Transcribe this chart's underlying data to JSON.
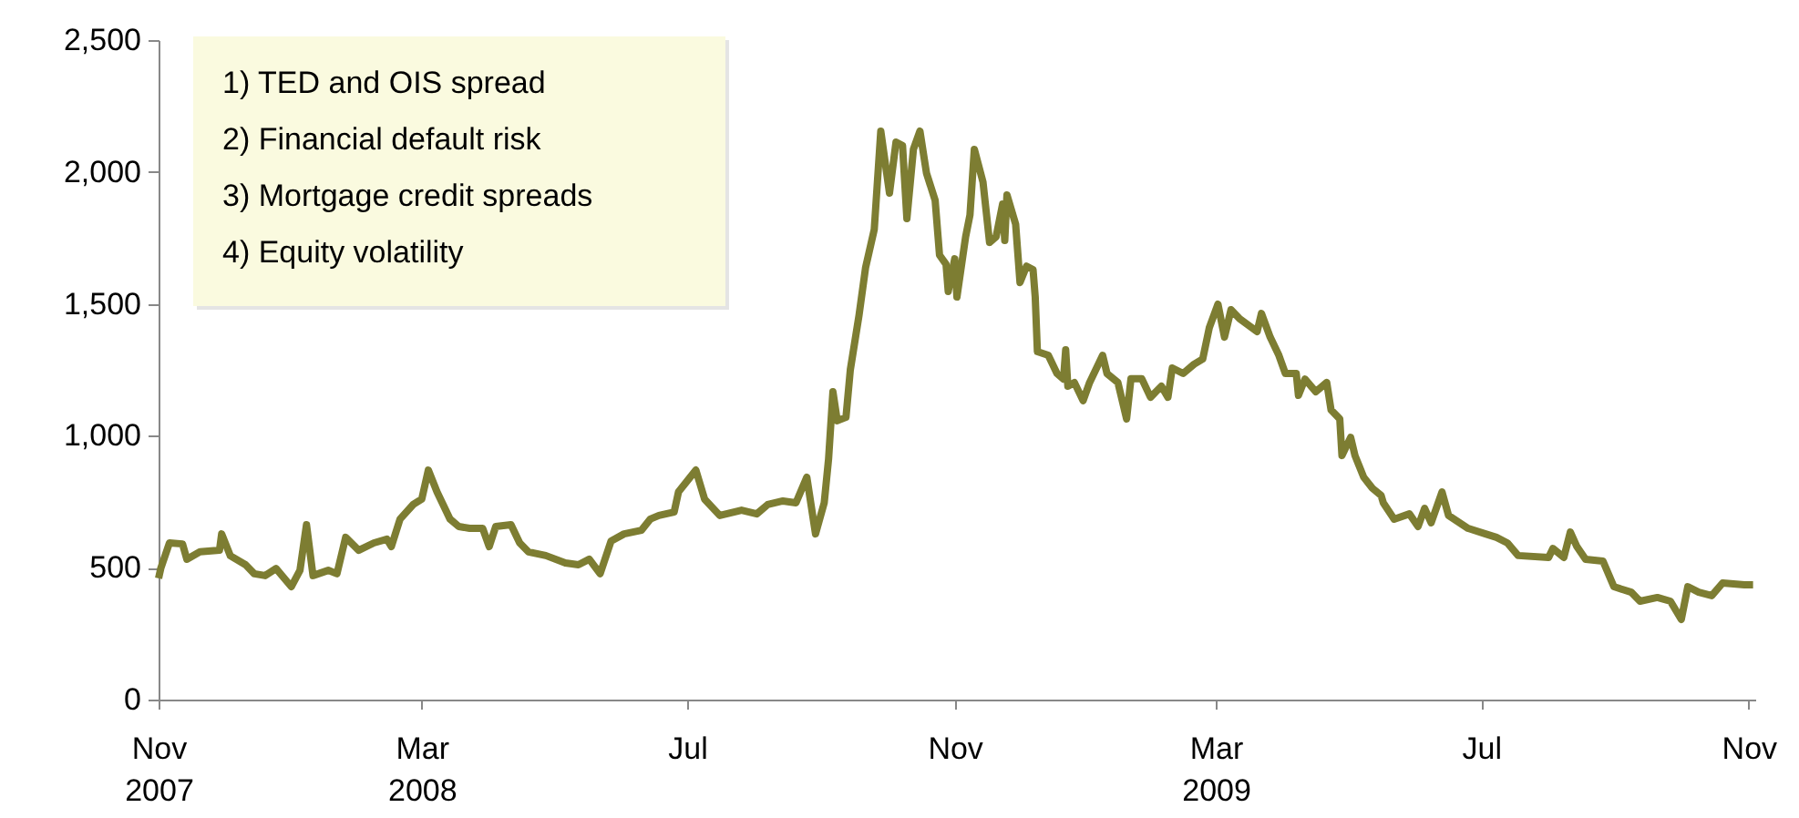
{
  "chart_data": {
    "type": "line",
    "x": [
      "2007-11-01",
      "2007-11-02",
      "2007-11-06",
      "2007-11-12",
      "2007-11-14",
      "2007-11-20",
      "2007-11-29",
      "2007-11-30",
      "2007-12-04",
      "2007-12-11",
      "2007-12-15",
      "2007-12-20",
      "2007-12-25",
      "2008-01-01",
      "2008-01-05",
      "2008-01-08",
      "2008-01-11",
      "2008-01-18",
      "2008-01-22",
      "2008-01-26",
      "2008-02-01",
      "2008-02-08",
      "2008-02-14",
      "2008-02-16",
      "2008-02-20",
      "2008-02-26",
      "2008-03-01",
      "2008-03-04",
      "2008-03-08",
      "2008-03-14",
      "2008-03-18",
      "2008-03-23",
      "2008-03-29",
      "2008-04-01",
      "2008-04-04",
      "2008-04-11",
      "2008-04-15",
      "2008-04-19",
      "2008-04-27",
      "2008-05-06",
      "2008-05-12",
      "2008-05-17",
      "2008-05-22",
      "2008-05-27",
      "2008-06-02",
      "2008-06-10",
      "2008-06-14",
      "2008-06-18",
      "2008-06-25",
      "2008-06-27",
      "2008-07-05",
      "2008-07-09",
      "2008-07-16",
      "2008-07-26",
      "2008-08-02",
      "2008-08-07",
      "2008-08-14",
      "2008-08-20",
      "2008-08-25",
      "2008-08-29",
      "2008-09-02",
      "2008-09-04",
      "2008-09-06",
      "2008-09-08",
      "2008-09-12",
      "2008-09-14",
      "2008-09-18",
      "2008-09-21",
      "2008-09-25",
      "2008-09-28",
      "2008-10-02",
      "2008-10-05",
      "2008-10-08",
      "2008-10-10",
      "2008-10-13",
      "2008-10-16",
      "2008-10-19",
      "2008-10-23",
      "2008-10-25",
      "2008-10-28",
      "2008-10-29",
      "2008-11-01",
      "2008-11-02",
      "2008-11-06",
      "2008-11-08",
      "2008-11-10",
      "2008-11-14",
      "2008-11-17",
      "2008-11-20",
      "2008-11-23",
      "2008-11-24",
      "2008-11-25",
      "2008-11-29",
      "2008-12-01",
      "2008-12-04",
      "2008-12-07",
      "2008-12-08",
      "2008-12-09",
      "2008-12-14",
      "2008-12-18",
      "2008-12-21",
      "2008-12-22",
      "2008-12-23",
      "2008-12-26",
      "2008-12-30",
      "2009-01-02",
      "2009-01-08",
      "2009-01-10",
      "2009-01-15",
      "2009-01-19",
      "2009-01-21",
      "2009-01-26",
      "2009-01-30",
      "2009-02-04",
      "2009-02-07",
      "2009-02-09",
      "2009-02-14",
      "2009-02-19",
      "2009-02-23",
      "2009-02-26",
      "2009-03-02",
      "2009-03-05",
      "2009-03-08",
      "2009-03-12",
      "2009-03-20",
      "2009-03-22",
      "2009-03-26",
      "2009-03-30",
      "2009-04-02",
      "2009-04-07",
      "2009-04-08",
      "2009-04-11",
      "2009-04-16",
      "2009-04-21",
      "2009-04-23",
      "2009-04-27",
      "2009-04-28",
      "2009-05-02",
      "2009-05-04",
      "2009-05-08",
      "2009-05-12",
      "2009-05-16",
      "2009-05-17",
      "2009-05-22",
      "2009-05-29",
      "2009-06-02",
      "2009-06-05",
      "2009-06-08",
      "2009-06-13",
      "2009-06-16",
      "2009-06-25",
      "2009-07-03",
      "2009-07-08",
      "2009-07-13",
      "2009-07-18",
      "2009-08-01",
      "2009-08-03",
      "2009-08-08",
      "2009-08-11",
      "2009-08-14",
      "2009-08-18",
      "2009-08-26",
      "2009-08-31",
      "2009-09-08",
      "2009-09-12",
      "2009-09-20",
      "2009-09-26",
      "2009-10-01",
      "2009-10-04",
      "2009-10-09",
      "2009-10-15",
      "2009-10-20",
      "2009-10-30",
      "2009-11-03"
    ],
    "series": [
      {
        "color": "#7d7d32",
        "values": [
          460,
          497,
          594,
          590,
          532,
          560,
          566,
          628,
          545,
          511,
          477,
          470,
          497,
          428,
          490,
          663,
          470,
          490,
          477,
          615,
          566,
          594,
          608,
          580,
          684,
          739,
          760,
          870,
          787,
          684,
          656,
          649,
          649,
          580,
          656,
          663,
          594,
          560,
          546,
          518,
          511,
          532,
          477,
          601,
          628,
          642,
          684,
          698,
          711,
          787,
          870,
          760,
          698,
          718,
          704,
          739,
          753,
          746,
          843,
          628,
          746,
          912,
          1167,
          1057,
          1070,
          1250,
          1457,
          1637,
          1782,
          2155,
          1920,
          2113,
          2100,
          1823,
          2086,
          2155,
          1996,
          1892,
          1685,
          1650,
          1547,
          1671,
          1526,
          1754,
          1837,
          2086,
          1961,
          1733,
          1754,
          1878,
          1740,
          1913,
          1802,
          1581,
          1643,
          1630,
          1526,
          1319,
          1305,
          1236,
          1215,
          1326,
          1188,
          1202,
          1133,
          1202,
          1305,
          1236,
          1202,
          1064,
          1216,
          1216,
          1146,
          1188,
          1146,
          1257,
          1236,
          1271,
          1291,
          1409,
          1499,
          1374,
          1478,
          1443,
          1395,
          1464,
          1374,
          1305,
          1236,
          1236,
          1153,
          1215,
          1167,
          1202,
          1098,
          1064,
          925,
          994,
          925,
          843,
          801,
          774,
          746,
          684,
          704,
          656,
          725,
          670,
          787,
          698,
          649,
          628,
          615,
          594,
          546,
          539,
          573,
          539,
          635,
          580,
          532,
          525,
          428,
          407,
          373,
          387,
          373,
          304,
          428,
          407,
          394,
          442,
          435,
          435
        ]
      }
    ],
    "xlim": [
      "2007-11-01",
      "2009-11-04"
    ],
    "xticks": [
      {
        "value": "2007-11-01",
        "label": "Nov 2007"
      },
      {
        "value": "2008-03-01",
        "label": "Mar 2008"
      },
      {
        "value": "2008-07-01",
        "label": "Jul"
      },
      {
        "value": "2008-11-01",
        "label": "Nov"
      },
      {
        "value": "2009-03-01",
        "label": "Mar 2009"
      },
      {
        "value": "2009-07-01",
        "label": "Jul"
      },
      {
        "value": "2009-11-01",
        "label": "Nov"
      }
    ],
    "ylim": [
      0,
      2500
    ],
    "yticks": [
      {
        "value": 0,
        "label": "0"
      },
      {
        "value": 500,
        "label": "500"
      },
      {
        "value": 1000,
        "label": "1,000"
      },
      {
        "value": 1500,
        "label": "1,500"
      },
      {
        "value": 2000,
        "label": "2,000"
      },
      {
        "value": 2500,
        "label": "2,500"
      }
    ],
    "annotations": [
      "1) TED and OIS spread",
      "2) Financial default risk",
      "3) Mortgage credit spreads",
      "4) Equity volatility"
    ],
    "grid": false,
    "legend": false
  }
}
